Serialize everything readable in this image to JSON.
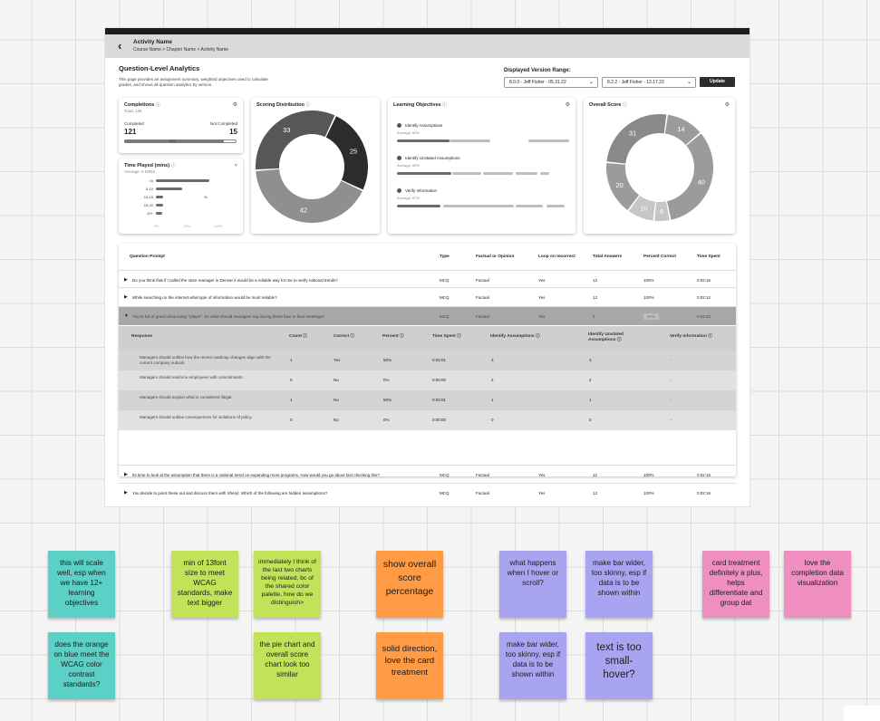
{
  "header": {
    "activity_name": "Activity Name",
    "breadcrumb": "Course Name > Chapter Name > Activity Name"
  },
  "page": {
    "title": "Question-Level Analytics",
    "description": "This page provides an assignment summary, weighted objectives used to calculate grades, and shows all question analytics by version.",
    "version_range_label": "Displayed Version Range:",
    "version_from": "8.0.0 - Jeff Fisher - 05.31.22",
    "version_to": "8.2.2 - Jeff Fisher - 13.17.22",
    "update_label": "Update"
  },
  "completions": {
    "title": "Completions",
    "total": "Total: 136",
    "completed_label": "Completed",
    "completed_value": "121",
    "not_completed_label": "Not Completed",
    "not_completed_value": "15",
    "completed_fraction": 0.89,
    "bar_label": "89%"
  },
  "time_played": {
    "title": "Time Played (mins)",
    "average": "Average: 5 MINS",
    "bins": [
      {
        "label": "<5",
        "value": 0.9
      },
      {
        "label": "5-10",
        "value": 0.45
      },
      {
        "label": "10-15",
        "value": 0.13
      },
      {
        "label": "15-20",
        "value": 0.13
      },
      {
        "label": "20+",
        "value": 0.11
      }
    ],
    "bar_note": "%",
    "axis_ticks": [
      "0%",
      "50%",
      "100%"
    ]
  },
  "scoring": {
    "title": "Scoring Distribution"
  },
  "objectives": {
    "title": "Learning Objectives",
    "items": [
      {
        "name": "Identify Assumptions",
        "avg": "Average: 83%"
      },
      {
        "name": "Identify Unstated Assumptions",
        "avg": "Average: 89%"
      },
      {
        "name": "Verify Information",
        "avg": "Average: 87%"
      }
    ]
  },
  "overall": {
    "title": "Overall Score"
  },
  "chart_data": [
    {
      "type": "pie",
      "title": "Scoring Distribution",
      "labels": [
        "25",
        "42",
        "33"
      ],
      "values": [
        25,
        42,
        33
      ],
      "colors": [
        "#2c2c2c",
        "#8f8f8f",
        "#575757"
      ]
    },
    {
      "type": "pie",
      "title": "Overall Score",
      "labels": [
        "14",
        "40",
        "6",
        "10",
        "20",
        "31"
      ],
      "values": [
        14,
        40,
        6,
        10,
        20,
        31
      ],
      "colors": [
        "#9b9b9b",
        "#9b9b9b",
        "#c6c6c6",
        "#c6c6c6",
        "#9b9b9b",
        "#8a8a8a"
      ]
    }
  ],
  "table": {
    "headers": [
      "Question Prompt",
      "Type",
      "Factual or Opinion",
      "Loop on Incorrect",
      "Total Answers",
      "Percent Correct",
      "Time Spent"
    ],
    "rows_top": [
      {
        "prompt": "Do you think that if I called the store manager in Denver it would be a reliable way for me to verify national trends?",
        "type": "MCQ",
        "fo": "Factual",
        "loop": "Yes",
        "total": "12",
        "pct": "100%",
        "time": "0:02:16"
      },
      {
        "prompt": "While searching on the internet what type of information would be most reliable?",
        "type": "MCQ",
        "fo": "Factual",
        "loop": "Yes",
        "total": "12",
        "pct": "100%",
        "time": "0:02:12"
      }
    ],
    "expanded": {
      "prompt": "You're full of great ideas today \"player\". So what should managers say during these face to face meetings?",
      "type": "MCQ",
      "fo": "Factual",
      "loop": "Yes",
      "total": "2",
      "pct": "50%",
      "time": "0:02:34"
    },
    "sub_headers": [
      "Response",
      "Count",
      "Correct",
      "Percent",
      "Time Spent",
      "Identify Assumptions",
      "Identify Unstated Assumptions",
      "Verify Information"
    ],
    "sub_rows": [
      {
        "response": "Managers should outline how the recent roadmap changes align with the current company outlook.",
        "count": "1",
        "correct": "Yes",
        "percent": "50%",
        "time": "0:02:01",
        "ia": "3",
        "iua": "3",
        "vi": "-"
      },
      {
        "response": "Managers should reinforce employees with commitments.",
        "count": "0",
        "correct": "No",
        "percent": "0%",
        "time": "0:00:00",
        "ia": "2",
        "iua": "2",
        "vi": "-"
      },
      {
        "response": "Managers should explain what is considered illegal.",
        "count": "1",
        "correct": "No",
        "percent": "50%",
        "time": "0:00:01",
        "ia": "1",
        "iua": "1",
        "vi": "-"
      },
      {
        "response": "Managers should outline consequences for violations of policy.",
        "count": "0",
        "correct": "No",
        "percent": "0%",
        "time": "0:00:00",
        "ia": "0",
        "iua": "0",
        "vi": "-"
      }
    ],
    "rows_bottom": [
      {
        "prompt": "Its time to look at the assumption that there is a national trend on expanding more programs. How would you go about fact checking this?",
        "type": "MCQ",
        "fo": "Factual",
        "loop": "Yes",
        "total": "12",
        "pct": "100%",
        "time": "0:02:16"
      },
      {
        "prompt": "You decide to point these out and discuss them with Sheryl. Which of the following are hidden assumptions?",
        "type": "MCQ",
        "fo": "Factual",
        "loop": "Yes",
        "total": "12",
        "pct": "100%",
        "time": "0:02:16"
      }
    ]
  },
  "stickies": [
    {
      "text": "this will scale well, esp when we have 12+ learning objectives",
      "color": "#5ccfc6"
    },
    {
      "text": "does the orange on blue meet the WCAG color contrast standards?",
      "color": "#5ccfc6"
    },
    {
      "text": "min of 13font size to meet WCAG standards, make text bigger",
      "color": "#c2e25a"
    },
    {
      "text": "immediately I think of the last two charts being related, bc of the shared color palette, how do we distinguish>",
      "color": "#c2e25a"
    },
    {
      "text": "the pie chart and overall score chart look too similar",
      "color": "#c2e25a"
    },
    {
      "text": "show overall score percentage",
      "color": "#ff9b45"
    },
    {
      "text": "solid direction, love the card treatment",
      "color": "#ff9b45"
    },
    {
      "text": "what happens when I hover or scroll?",
      "color": "#a9a4f0"
    },
    {
      "text": "make bar wider, too skinny, esp if data is to be shown within",
      "color": "#a9a4f0"
    },
    {
      "text": "make bar wider, too skinny, esp if data is to be shown within",
      "color": "#a9a4f0"
    },
    {
      "text": "text is too small- hover?",
      "color": "#a9a4f0"
    },
    {
      "text": "card treatment definitely a plus, helps differentiate and group dat",
      "color": "#ef8fbf"
    },
    {
      "text": "love the completion data visualization",
      "color": "#ef8fbf"
    }
  ]
}
